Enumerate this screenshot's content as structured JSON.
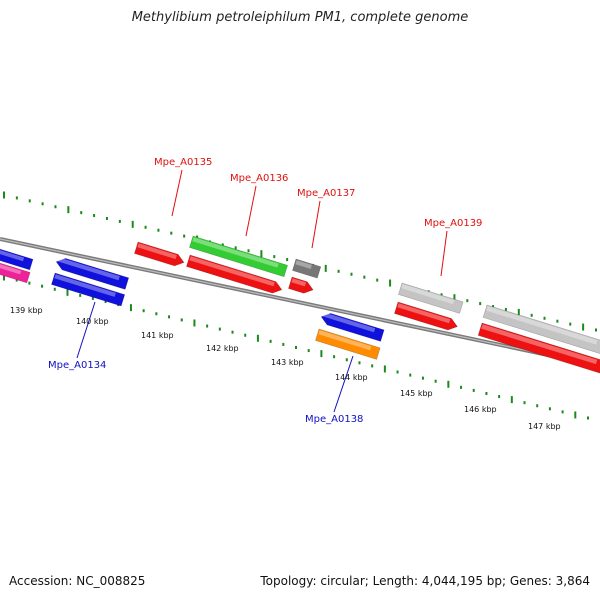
{
  "title": "Methylibium petroleiphilum PM1, complete genome",
  "footer": {
    "accession": "Accession: NC_008825",
    "topology": "Topology: circular; Length: 4,044,195 bp; Genes: 3,864"
  },
  "colors": {
    "backbone": "#7a7a7a",
    "ticks": "#1a8a1a",
    "upper_label": "#e01010",
    "lower_label": "#1010c0",
    "red": "#ee1111",
    "blue": "#1111dd",
    "green": "#33cc33",
    "gray_dark": "#777777",
    "gray_light": "#c4c4c4",
    "orange": "#ff8c00",
    "magenta": "#ee2299"
  },
  "kbp_labels": [
    "139 kbp",
    "140 kbp",
    "141 kbp",
    "142 kbp",
    "143 kbp",
    "144 kbp",
    "145 kbp",
    "146 kbp",
    "147 kbp"
  ],
  "gene_labels_top": [
    "Mpe_A0135",
    "Mpe_A0136",
    "Mpe_A0137",
    "Mpe_A0139"
  ],
  "gene_labels_bottom": [
    "Mpe_A0134",
    "Mpe_A0138"
  ],
  "genes": [
    {
      "id": "magenta-block-left",
      "color": "magenta"
    },
    {
      "id": "blue-block-left",
      "color": "blue"
    },
    {
      "id": "blue-arrow-a0134-upper",
      "color": "blue"
    },
    {
      "id": "blue-block-a0134-lower",
      "color": "blue"
    },
    {
      "id": "red-arrow-a0135",
      "color": "red"
    },
    {
      "id": "green-block-a0136",
      "color": "green"
    },
    {
      "id": "red-arrow-a0136",
      "color": "red"
    },
    {
      "id": "gray-block-a0137",
      "color": "gray_dark"
    },
    {
      "id": "red-arrow-a0137",
      "color": "red"
    },
    {
      "id": "blue-arrow-a0138",
      "color": "blue"
    },
    {
      "id": "orange-block-a0138",
      "color": "orange"
    },
    {
      "id": "gray-block-a0139",
      "color": "gray_light"
    },
    {
      "id": "red-arrow-a0139",
      "color": "red"
    },
    {
      "id": "gray-block-right",
      "color": "gray_light"
    },
    {
      "id": "red-block-right",
      "color": "red"
    }
  ]
}
